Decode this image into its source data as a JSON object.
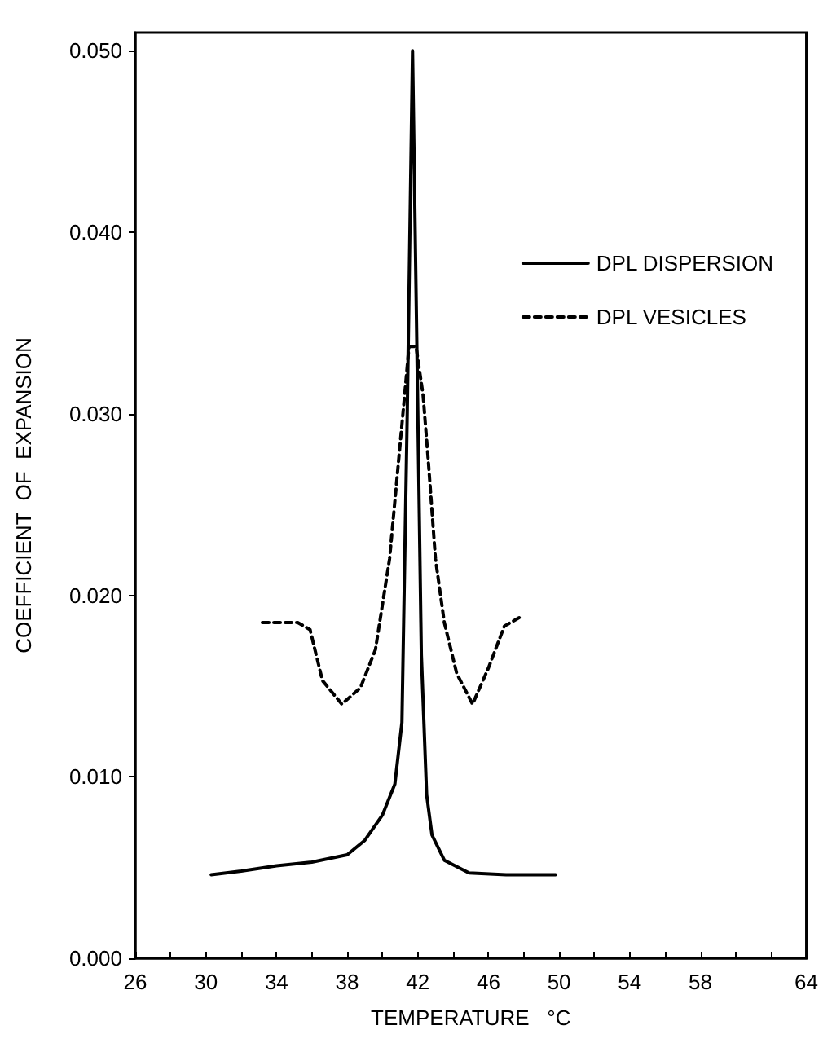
{
  "chart_data": {
    "type": "line",
    "xlabel": "TEMPERATURE   °C",
    "ylabel": "COEFFICIENT  OF  EXPANSION",
    "xlim": [
      26,
      64
    ],
    "ylim": [
      0,
      0.051
    ],
    "xticks": [
      26,
      {
        "value": 28,
        "label": null
      },
      30,
      {
        "value": 32,
        "label": null
      },
      34,
      {
        "value": 36,
        "label": null
      },
      38,
      {
        "value": 40,
        "label": null
      },
      42,
      {
        "value": 44,
        "label": null
      },
      46,
      {
        "value": 48,
        "label": null
      },
      50,
      {
        "value": 52,
        "label": null
      },
      54,
      {
        "value": 56,
        "label": null
      },
      58,
      {
        "value": 60,
        "label": null
      },
      {
        "value": 62,
        "label": null
      },
      64
    ],
    "yticks": [
      {
        "value": 0,
        "label": "0.000"
      },
      {
        "value": 0.01,
        "label": "0.010"
      },
      {
        "value": 0.02,
        "label": "0.020"
      },
      {
        "value": 0.03,
        "label": "0.030"
      },
      {
        "value": 0.04,
        "label": "0.040"
      },
      {
        "value": 0.05,
        "label": "0.050"
      }
    ],
    "grid": false,
    "legend": "top right",
    "marker": "none",
    "series": [
      {
        "name": "DPL DISPERSION",
        "color": "#000000",
        "line_style": "solid",
        "x": [
          30.3,
          32,
          34,
          36,
          38,
          39,
          40,
          40.7,
          41.1,
          41.4,
          41.7,
          42.0,
          42.2,
          42.5,
          42.8,
          43.5,
          44.9,
          47,
          49.8
        ],
        "values": [
          0.0046,
          0.0048,
          0.0051,
          0.0053,
          0.0057,
          0.0065,
          0.0079,
          0.0096,
          0.013,
          0.03,
          0.05,
          0.03,
          0.0167,
          0.009,
          0.0068,
          0.0054,
          0.0047,
          0.0046,
          0.0046
        ]
      },
      {
        "name": "DPL VESICLES",
        "color": "#000000",
        "line_style": "dashed",
        "x": [
          33.2,
          35.2,
          35.9,
          36.6,
          37.7,
          38.75,
          39.6,
          40.4,
          40.9,
          41.25,
          41.5,
          41.9,
          42.3,
          42.6,
          43.0,
          43.5,
          44.2,
          45.1,
          46.0,
          46.9,
          47.8
        ],
        "values": [
          0.0185,
          0.0185,
          0.0181,
          0.0153,
          0.014,
          0.0149,
          0.017,
          0.022,
          0.0273,
          0.031,
          0.0337,
          0.0337,
          0.031,
          0.0273,
          0.022,
          0.0185,
          0.0157,
          0.014,
          0.016,
          0.0183,
          0.0188
        ]
      }
    ]
  }
}
